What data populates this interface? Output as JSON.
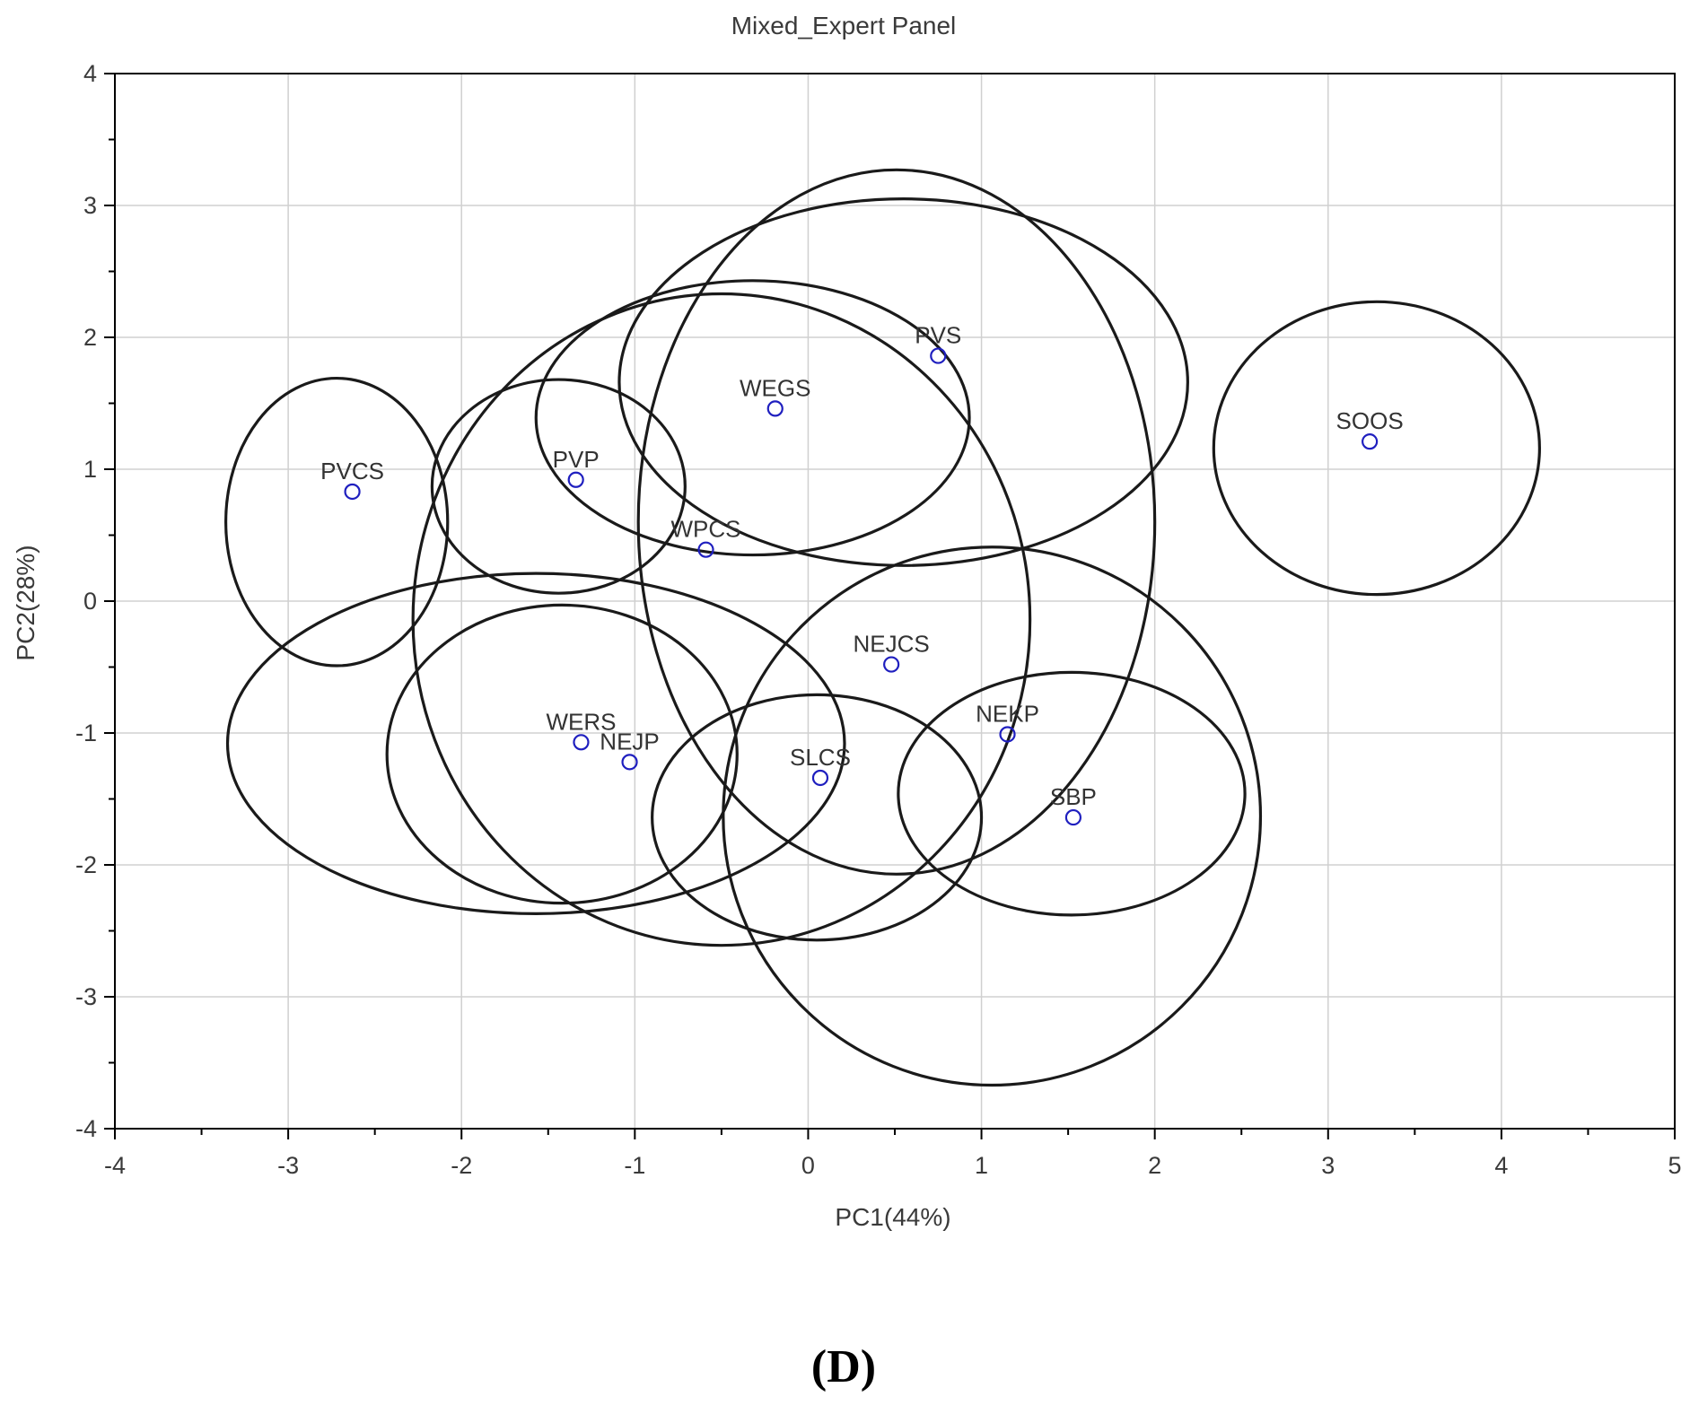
{
  "panel_letter": "(D)",
  "chart_data": {
    "type": "scatter",
    "title": "Mixed_Expert Panel",
    "xlabel": "PC1(44%)",
    "ylabel": "PC2(28%)",
    "xlim": [
      -4,
      5
    ],
    "ylim": [
      -4,
      4
    ],
    "x_ticks": [
      -4,
      -3,
      -2,
      -1,
      0,
      1,
      2,
      3,
      4,
      5
    ],
    "y_ticks": [
      -4,
      -3,
      -2,
      -1,
      0,
      1,
      2,
      3,
      4
    ],
    "grid": true,
    "point_color": "#1f1fbf",
    "points": [
      {
        "label": "PVCS",
        "x": -2.63,
        "y": 0.83
      },
      {
        "label": "PVP",
        "x": -1.34,
        "y": 0.92
      },
      {
        "label": "WEGS",
        "x": -0.19,
        "y": 1.46
      },
      {
        "label": "PVS",
        "x": 0.75,
        "y": 1.86
      },
      {
        "label": "WPCS",
        "x": -0.59,
        "y": 0.39
      },
      {
        "label": "SOOS",
        "x": 3.24,
        "y": 1.21
      },
      {
        "label": "NEJCS",
        "x": 0.48,
        "y": -0.48
      },
      {
        "label": "WERS",
        "x": -1.31,
        "y": -1.07
      },
      {
        "label": "NEJP",
        "x": -1.03,
        "y": -1.22
      },
      {
        "label": "SLCS",
        "x": 0.07,
        "y": -1.34
      },
      {
        "label": "NEKP",
        "x": 1.15,
        "y": -1.01
      },
      {
        "label": "SBP",
        "x": 1.53,
        "y": -1.64
      }
    ],
    "ellipses": [
      {
        "cx": -2.72,
        "cy": 0.6,
        "rx": 0.64,
        "ry": 1.09
      },
      {
        "cx": -1.44,
        "cy": 0.87,
        "rx": 0.73,
        "ry": 0.81
      },
      {
        "cx": -0.32,
        "cy": 1.39,
        "rx": 1.25,
        "ry": 1.04
      },
      {
        "cx": 0.55,
        "cy": 1.66,
        "rx": 1.64,
        "ry": 1.39
      },
      {
        "cx": -0.5,
        "cy": -0.14,
        "rx": 1.78,
        "ry": 2.47
      },
      {
        "cx": 3.28,
        "cy": 1.16,
        "rx": 0.94,
        "ry": 1.11
      },
      {
        "cx": 1.06,
        "cy": -1.63,
        "rx": 1.55,
        "ry": 2.04
      },
      {
        "cx": -1.57,
        "cy": -1.08,
        "rx": 1.78,
        "ry": 1.29
      },
      {
        "cx": -1.42,
        "cy": -1.16,
        "rx": 1.01,
        "ry": 1.13
      },
      {
        "cx": 0.51,
        "cy": 0.6,
        "rx": 1.49,
        "ry": 2.67
      },
      {
        "cx": 0.05,
        "cy": -1.64,
        "rx": 0.95,
        "ry": 0.93
      },
      {
        "cx": 1.52,
        "cy": -1.46,
        "rx": 1.0,
        "ry": 0.92
      }
    ]
  }
}
